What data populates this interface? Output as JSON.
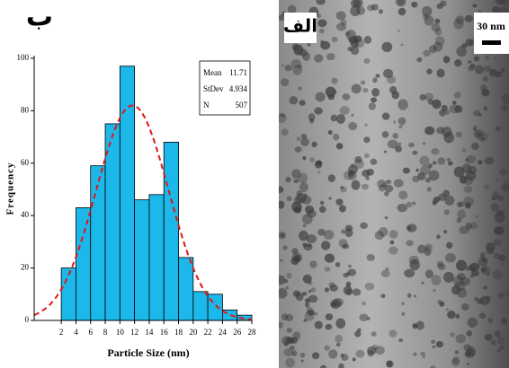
{
  "panel_label": "ب",
  "chart_data": {
    "type": "histogram",
    "ylabel": "Frequency",
    "xlabel": "Particle Size (nm)",
    "bins": [
      2,
      4,
      6,
      8,
      10,
      12,
      14,
      16,
      18,
      20,
      22,
      24,
      26,
      28
    ],
    "counts": [
      20,
      43,
      59,
      75,
      97,
      46,
      48,
      68,
      24,
      11,
      10,
      4,
      2
    ],
    "color": "#1cb8ea",
    "xlim": [
      -1.7,
      28
    ],
    "xticks": [
      2,
      4,
      6,
      8,
      10,
      12,
      14,
      16,
      18,
      20,
      22,
      24,
      26,
      28
    ],
    "ylim": [
      0,
      101
    ],
    "yticks": [
      0,
      20,
      40,
      60,
      80,
      100
    ],
    "stats": [
      {
        "label": "Mean",
        "value": 11.71
      },
      {
        "label": "StDev",
        "value": 4.934
      },
      {
        "label": "N",
        "value": 507
      }
    ],
    "fit_color": "#e01515"
  },
  "image": {
    "label": "الف",
    "scale_bar": "30 nm"
  }
}
